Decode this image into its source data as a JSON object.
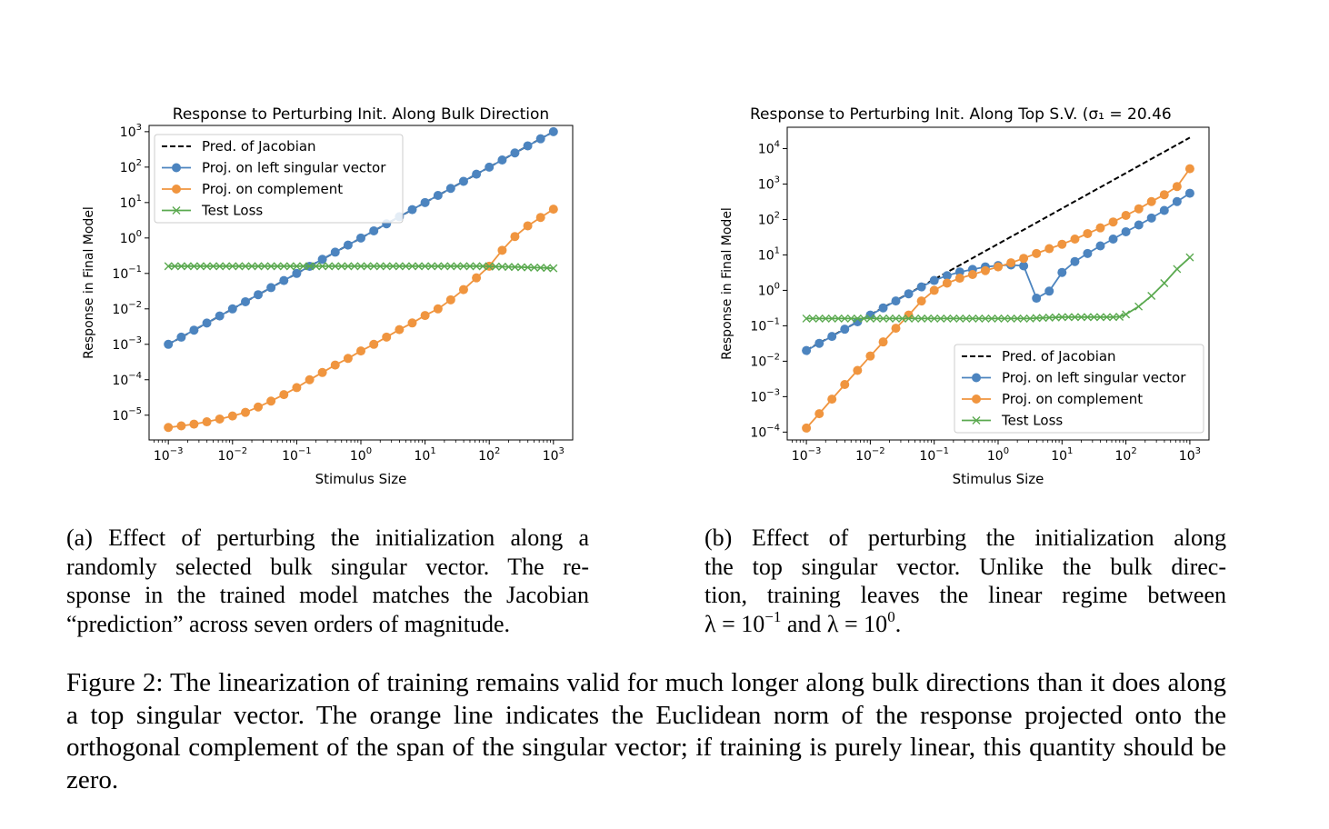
{
  "chart_data": [
    {
      "type": "line",
      "title": "Response to Perturbing Init. Along Bulk Direction",
      "xlabel": "Stimulus Size",
      "ylabel": "Response in Final Model",
      "xscale": "log",
      "yscale": "log",
      "xlim": [
        0.001,
        1000
      ],
      "ylim": [
        2e-06,
        1500
      ],
      "xticks": [
        {
          "label": "10",
          "exp": "−3"
        },
        {
          "label": "10",
          "exp": "−2"
        },
        {
          "label": "10",
          "exp": "−1"
        },
        {
          "label": "10",
          "exp": "0"
        },
        {
          "label": "10",
          "exp": "1"
        },
        {
          "label": "10",
          "exp": "2"
        },
        {
          "label": "10",
          "exp": "3"
        }
      ],
      "yticks": [
        {
          "label": "10",
          "exp": "−5"
        },
        {
          "label": "10",
          "exp": "−4"
        },
        {
          "label": "10",
          "exp": "−3"
        },
        {
          "label": "10",
          "exp": "−2"
        },
        {
          "label": "10",
          "exp": "−1"
        },
        {
          "label": "10",
          "exp": "0"
        },
        {
          "label": "10",
          "exp": "1"
        },
        {
          "label": "10",
          "exp": "2"
        },
        {
          "label": "10",
          "exp": "3"
        }
      ],
      "legend_position": "upper-left",
      "series": [
        {
          "name": "Pred. of Jacobian",
          "style": "dashed",
          "color": "#000000",
          "x": [
            0.001,
            1000
          ],
          "y": [
            0.001,
            1000
          ]
        },
        {
          "name": "Proj. on left singular vector",
          "marker": "circle",
          "color": "#4c84bf",
          "x": [
            0.001,
            0.00159,
            0.00251,
            0.00398,
            0.00631,
            0.01,
            0.0159,
            0.0251,
            0.0398,
            0.0631,
            0.1,
            0.159,
            0.251,
            0.398,
            0.631,
            1,
            1.59,
            2.51,
            3.98,
            6.31,
            10,
            15.9,
            25.1,
            39.8,
            63.1,
            100,
            159,
            251,
            398,
            631,
            1000
          ],
          "y": [
            0.001,
            0.00159,
            0.00251,
            0.00398,
            0.00631,
            0.01,
            0.0159,
            0.0251,
            0.0398,
            0.0631,
            0.1,
            0.159,
            0.251,
            0.398,
            0.631,
            1,
            1.59,
            2.51,
            3.98,
            6.31,
            10,
            15.9,
            25.1,
            39.8,
            63.1,
            100,
            159,
            251,
            398,
            631,
            1000
          ]
        },
        {
          "name": "Proj. on complement",
          "marker": "circle",
          "color": "#f0953f",
          "x": [
            0.001,
            0.00159,
            0.00251,
            0.00398,
            0.00631,
            0.01,
            0.0159,
            0.0251,
            0.0398,
            0.0631,
            0.1,
            0.159,
            0.251,
            0.398,
            0.631,
            1,
            1.59,
            2.51,
            3.98,
            6.31,
            10,
            15.9,
            25.1,
            39.8,
            63.1,
            100,
            159,
            251,
            398,
            631,
            1000
          ],
          "y": [
            4.5e-06,
            5e-06,
            5.6e-06,
            6.5e-06,
            7.8e-06,
            9.5e-06,
            1.2e-05,
            1.7e-05,
            2.5e-05,
            3.8e-05,
            6e-05,
            0.0001,
            0.00016,
            0.00026,
            0.0004,
            0.00065,
            0.001,
            0.0016,
            0.0026,
            0.004,
            0.0065,
            0.01,
            0.018,
            0.035,
            0.075,
            0.16,
            0.45,
            1.1,
            2.2,
            3.8,
            6.5
          ]
        },
        {
          "name": "Test Loss",
          "marker": "x",
          "color": "#5aa94f",
          "x": [
            0.001,
            0.00126,
            0.00159,
            0.002,
            0.00251,
            0.00316,
            0.00398,
            0.00501,
            0.00631,
            0.00794,
            0.01,
            0.0126,
            0.0159,
            0.02,
            0.0251,
            0.0316,
            0.0398,
            0.0501,
            0.0631,
            0.0794,
            0.1,
            0.126,
            0.159,
            0.2,
            0.251,
            0.316,
            0.398,
            0.501,
            0.631,
            0.794,
            1,
            1.26,
            1.59,
            2,
            2.51,
            3.16,
            3.98,
            5.01,
            6.31,
            7.94,
            10,
            12.6,
            15.9,
            20,
            25.1,
            31.6,
            39.8,
            50.1,
            63.1,
            79.4,
            100,
            126,
            159,
            200,
            251,
            316,
            398,
            501,
            631,
            794,
            1000
          ],
          "y": [
            0.16,
            0.16,
            0.16,
            0.16,
            0.16,
            0.16,
            0.16,
            0.16,
            0.16,
            0.16,
            0.16,
            0.16,
            0.16,
            0.16,
            0.16,
            0.16,
            0.16,
            0.16,
            0.16,
            0.16,
            0.16,
            0.16,
            0.16,
            0.16,
            0.16,
            0.16,
            0.16,
            0.16,
            0.16,
            0.16,
            0.16,
            0.16,
            0.16,
            0.16,
            0.16,
            0.16,
            0.16,
            0.16,
            0.16,
            0.16,
            0.16,
            0.16,
            0.16,
            0.16,
            0.16,
            0.16,
            0.16,
            0.16,
            0.16,
            0.16,
            0.158,
            0.156,
            0.155,
            0.153,
            0.152,
            0.15,
            0.148,
            0.146,
            0.145,
            0.143,
            0.14
          ]
        }
      ]
    },
    {
      "type": "line",
      "title": "Response to Perturbing Init. Along Top S.V. (σ₁ = 20.46",
      "xlabel": "Stimulus Size",
      "ylabel": "Response in Final Model",
      "xscale": "log",
      "yscale": "log",
      "xlim": [
        0.001,
        1000
      ],
      "ylim": [
        6e-05,
        40000
      ],
      "xticks": [
        {
          "label": "10",
          "exp": "−3"
        },
        {
          "label": "10",
          "exp": "−2"
        },
        {
          "label": "10",
          "exp": "−1"
        },
        {
          "label": "10",
          "exp": "0"
        },
        {
          "label": "10",
          "exp": "1"
        },
        {
          "label": "10",
          "exp": "2"
        },
        {
          "label": "10",
          "exp": "3"
        }
      ],
      "yticks": [
        {
          "label": "10",
          "exp": "−4"
        },
        {
          "label": "10",
          "exp": "−3"
        },
        {
          "label": "10",
          "exp": "−2"
        },
        {
          "label": "10",
          "exp": "−1"
        },
        {
          "label": "10",
          "exp": "0"
        },
        {
          "label": "10",
          "exp": "1"
        },
        {
          "label": "10",
          "exp": "2"
        },
        {
          "label": "10",
          "exp": "3"
        },
        {
          "label": "10",
          "exp": "4"
        }
      ],
      "legend_position": "lower-right",
      "series": [
        {
          "name": "Pred. of Jacobian",
          "style": "dashed",
          "color": "#000000",
          "x": [
            0.001,
            1000
          ],
          "y": [
            0.02046,
            20460
          ]
        },
        {
          "name": "Proj. on left singular vector",
          "marker": "circle",
          "color": "#4c84bf",
          "x": [
            0.001,
            0.00159,
            0.00251,
            0.00398,
            0.00631,
            0.01,
            0.0159,
            0.0251,
            0.0398,
            0.0631,
            0.1,
            0.159,
            0.251,
            0.398,
            0.631,
            1,
            1.59,
            2.51,
            3.98,
            6.31,
            10,
            15.9,
            25.1,
            39.8,
            63.1,
            100,
            159,
            251,
            398,
            631,
            1000
          ],
          "y": [
            0.02,
            0.032,
            0.05,
            0.08,
            0.13,
            0.2,
            0.32,
            0.5,
            0.8,
            1.25,
            1.9,
            2.6,
            3.3,
            3.9,
            4.6,
            5.0,
            5.2,
            4.9,
            0.6,
            0.95,
            3.2,
            6.5,
            11,
            18,
            28,
            45,
            70,
            110,
            180,
            320,
            550
          ]
        },
        {
          "name": "Proj. on complement",
          "marker": "circle",
          "color": "#f0953f",
          "x": [
            0.001,
            0.00159,
            0.00251,
            0.00398,
            0.00631,
            0.01,
            0.0159,
            0.0251,
            0.0398,
            0.0631,
            0.1,
            0.159,
            0.251,
            0.398,
            0.631,
            1,
            1.59,
            2.51,
            3.98,
            6.31,
            10,
            15.9,
            25.1,
            39.8,
            63.1,
            100,
            159,
            251,
            398,
            631,
            1000
          ],
          "y": [
            0.00013,
            0.00033,
            0.00085,
            0.0022,
            0.0055,
            0.014,
            0.035,
            0.085,
            0.2,
            0.5,
            1.0,
            1.6,
            2.2,
            2.8,
            3.6,
            4.6,
            6.0,
            8.0,
            11,
            15,
            20,
            28,
            40,
            58,
            85,
            130,
            200,
            320,
            500,
            850,
            2700
          ]
        },
        {
          "name": "Test Loss",
          "marker": "x",
          "color": "#5aa94f",
          "x": [
            0.001,
            0.00126,
            0.00159,
            0.002,
            0.00251,
            0.00316,
            0.00398,
            0.00501,
            0.00631,
            0.00794,
            0.01,
            0.0126,
            0.0159,
            0.02,
            0.0251,
            0.0316,
            0.0398,
            0.0501,
            0.0631,
            0.0794,
            0.1,
            0.126,
            0.159,
            0.2,
            0.251,
            0.316,
            0.398,
            0.501,
            0.631,
            0.794,
            1,
            1.26,
            1.59,
            2,
            2.51,
            3.16,
            3.98,
            5.01,
            6.31,
            7.94,
            10,
            12.6,
            15.9,
            20,
            25.1,
            31.6,
            39.8,
            50.1,
            63.1,
            79.4,
            100,
            158,
            251,
            398,
            631,
            1000
          ],
          "y": [
            0.16,
            0.16,
            0.16,
            0.16,
            0.16,
            0.16,
            0.16,
            0.16,
            0.16,
            0.16,
            0.16,
            0.16,
            0.16,
            0.16,
            0.16,
            0.16,
            0.16,
            0.16,
            0.16,
            0.16,
            0.16,
            0.16,
            0.16,
            0.16,
            0.16,
            0.16,
            0.16,
            0.16,
            0.16,
            0.16,
            0.16,
            0.16,
            0.16,
            0.16,
            0.16,
            0.16,
            0.165,
            0.167,
            0.17,
            0.172,
            0.175,
            0.175,
            0.175,
            0.175,
            0.175,
            0.175,
            0.175,
            0.175,
            0.175,
            0.18,
            0.21,
            0.35,
            0.7,
            1.6,
            4.0,
            8.5
          ]
        }
      ]
    }
  ],
  "captions": {
    "a": {
      "line1": "(a) Effect of perturbing the initialization along a",
      "line2": "randomly selected bulk singular vector.  The re-",
      "line3": "sponse in the trained model matches the Jacobian",
      "line4": "“prediction” across seven orders of magnitude."
    },
    "b": {
      "line1": "(b) Effect of perturbing the initialization along",
      "line2": "the top singular vector.  Unlike the bulk direc-",
      "line3": "tion, training leaves the linear regime between",
      "line4_lambda1": "λ = 10",
      "line4_exp1": "−1",
      "line4_mid": " and λ = 10",
      "line4_exp2": "0",
      "line4_end": "."
    },
    "figure": "Figure 2:  The linearization of training remains valid for much longer along bulk directions than it does along a top singular vector.  The orange line indicates the Euclidean norm of the response projected onto the orthogonal complement of the span of the singular vector; if training is purely linear, this quantity should be zero."
  }
}
